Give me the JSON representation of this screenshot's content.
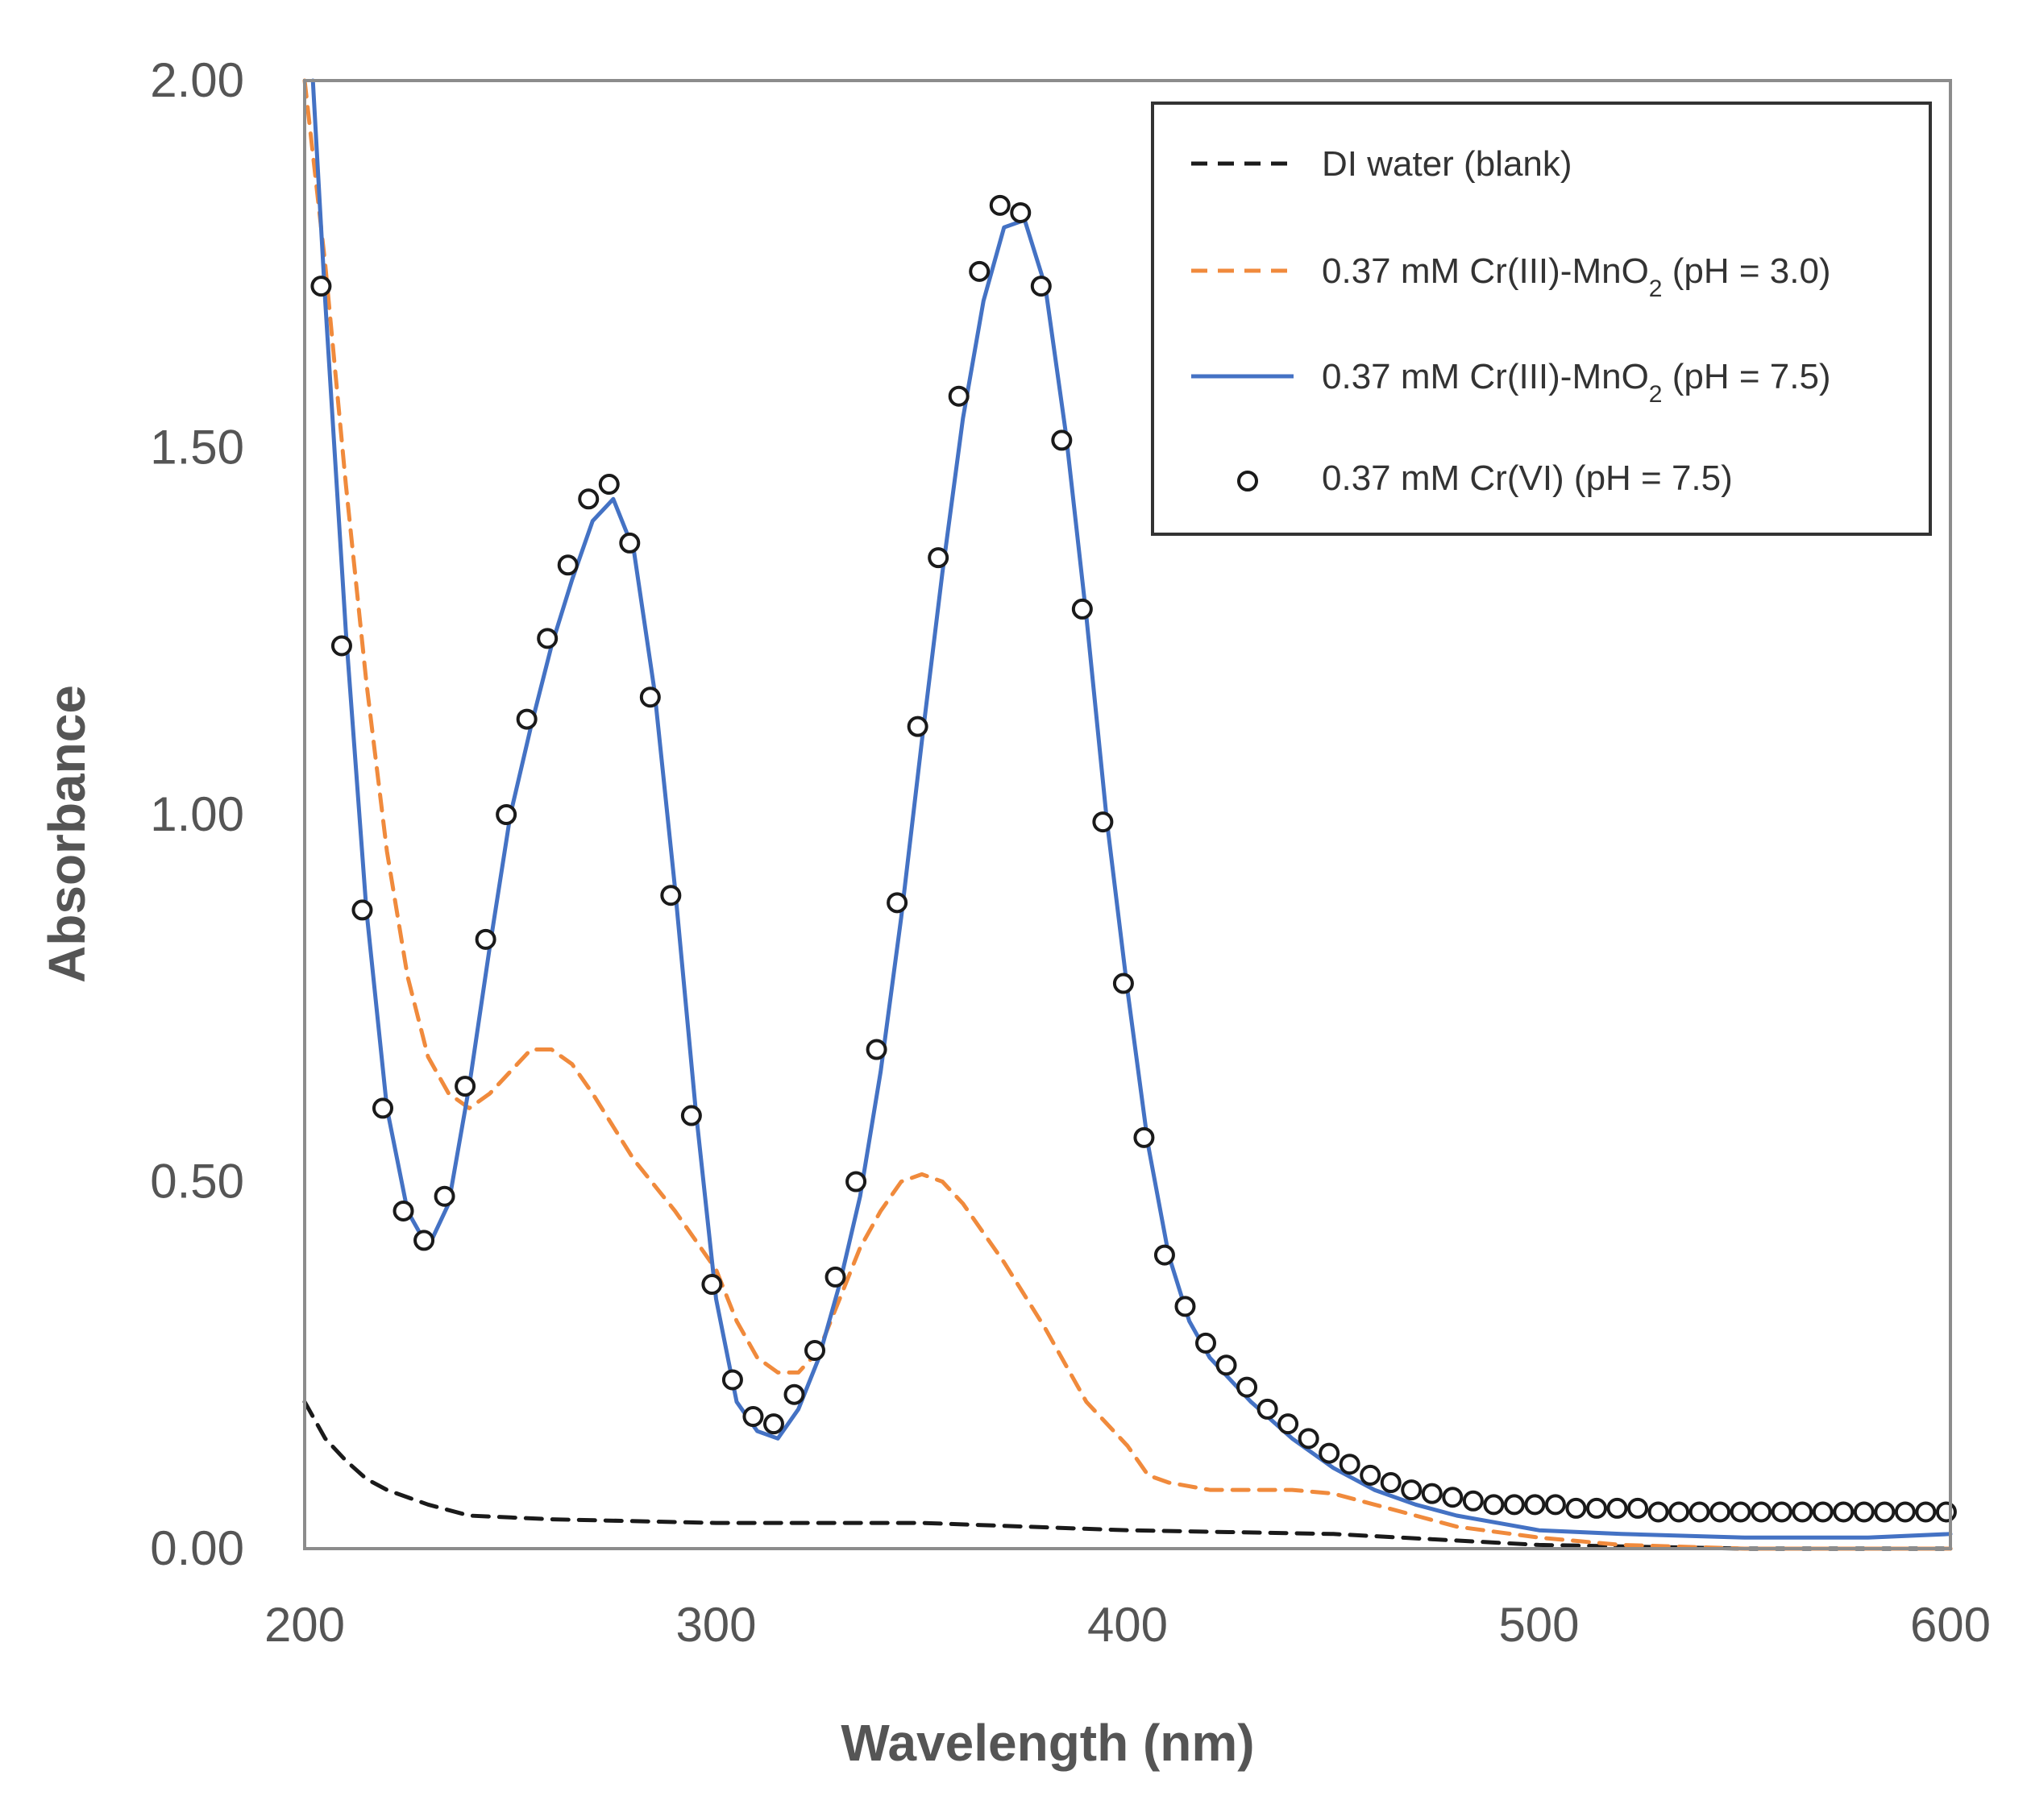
{
  "chart_data": {
    "type": "line",
    "xlabel": "Wavelength (nm)",
    "ylabel": "Absorbance",
    "xlim": [
      200,
      600
    ],
    "ylim": [
      0,
      2
    ],
    "x_ticks": [
      {
        "value": 200,
        "label": "200"
      },
      {
        "value": 300,
        "label": "300"
      },
      {
        "value": 400,
        "label": "400"
      },
      {
        "value": 500,
        "label": "500"
      },
      {
        "value": 600,
        "label": "600"
      }
    ],
    "y_ticks": [
      {
        "value": 0,
        "label": "0.00"
      },
      {
        "value": 0.5,
        "label": "0.50"
      },
      {
        "value": 1,
        "label": "1.00"
      },
      {
        "value": 1.5,
        "label": "1.50"
      },
      {
        "value": 2,
        "label": "2.00"
      }
    ],
    "legend": {
      "position": "top-right"
    },
    "series": [
      {
        "name": "DI water (blank)",
        "label_parts": [
          {
            "text": "DI water (blank)"
          }
        ],
        "style": "dashed",
        "color": "#1a1a1a",
        "x": [
          200,
          205,
          210,
          215,
          220,
          230,
          240,
          260,
          300,
          350,
          400,
          450,
          500,
          550,
          600
        ],
        "y": [
          0.2,
          0.15,
          0.12,
          0.095,
          0.08,
          0.06,
          0.045,
          0.04,
          0.035,
          0.035,
          0.025,
          0.02,
          0.005,
          0.0,
          0.0
        ]
      },
      {
        "name": "0.37 mM Cr(III)-MnO2 (pH = 3.0)",
        "label_parts": [
          {
            "text": "0.37 mM Cr(III)-MnO"
          },
          {
            "text": "2",
            "sub": true
          },
          {
            "text": " (pH = 3.0)"
          }
        ],
        "style": "dashed",
        "color": "#f08a3c",
        "x": [
          200,
          205,
          210,
          215,
          220,
          225,
          230,
          235,
          240,
          245,
          250,
          255,
          260,
          265,
          270,
          280,
          290,
          300,
          305,
          310,
          315,
          320,
          325,
          330,
          335,
          340,
          345,
          350,
          355,
          360,
          365,
          370,
          380,
          390,
          400,
          405,
          410,
          415,
          420,
          430,
          440,
          450,
          460,
          480,
          500,
          520,
          550,
          600
        ],
        "y": [
          2.0,
          1.75,
          1.45,
          1.18,
          0.95,
          0.78,
          0.67,
          0.62,
          0.6,
          0.62,
          0.65,
          0.68,
          0.68,
          0.66,
          0.62,
          0.53,
          0.46,
          0.38,
          0.31,
          0.26,
          0.24,
          0.24,
          0.27,
          0.34,
          0.41,
          0.46,
          0.5,
          0.51,
          0.5,
          0.47,
          0.43,
          0.39,
          0.3,
          0.2,
          0.14,
          0.1,
          0.09,
          0.085,
          0.08,
          0.08,
          0.08,
          0.075,
          0.06,
          0.03,
          0.015,
          0.005,
          0.0,
          0.0
        ]
      },
      {
        "name": "0.37 mM Cr(III)-MnO2 (pH = 7.5)",
        "label_parts": [
          {
            "text": "0.37 mM Cr(III)-MnO"
          },
          {
            "text": "2",
            "sub": true
          },
          {
            "text": " (pH = 7.5)"
          }
        ],
        "style": "solid",
        "color": "#4472c4",
        "x": [
          202,
          205,
          210,
          215,
          220,
          225,
          230,
          235,
          240,
          245,
          250,
          255,
          260,
          265,
          270,
          275,
          280,
          285,
          290,
          295,
          300,
          305,
          310,
          315,
          320,
          325,
          330,
          335,
          340,
          345,
          350,
          355,
          360,
          365,
          370,
          375,
          380,
          385,
          390,
          395,
          400,
          405,
          410,
          415,
          420,
          430,
          440,
          450,
          460,
          470,
          480,
          490,
          500,
          520,
          550,
          580,
          600
        ],
        "y": [
          2.0,
          1.7,
          1.25,
          0.87,
          0.6,
          0.46,
          0.41,
          0.47,
          0.63,
          0.82,
          1.0,
          1.12,
          1.23,
          1.32,
          1.4,
          1.43,
          1.36,
          1.17,
          0.9,
          0.6,
          0.34,
          0.2,
          0.16,
          0.15,
          0.19,
          0.26,
          0.36,
          0.48,
          0.65,
          0.86,
          1.1,
          1.33,
          1.54,
          1.7,
          1.8,
          1.81,
          1.72,
          1.52,
          1.27,
          0.99,
          0.76,
          0.55,
          0.4,
          0.31,
          0.26,
          0.2,
          0.15,
          0.11,
          0.08,
          0.06,
          0.045,
          0.035,
          0.025,
          0.02,
          0.015,
          0.015,
          0.02
        ]
      },
      {
        "name": "0.37 mM Cr(VI) (pH = 7.5)",
        "label_parts": [
          {
            "text": "0.37 mM Cr(VI) (pH = 7.5)"
          }
        ],
        "style": "markers",
        "color": "#1a1a1a",
        "x": [
          204,
          209,
          214,
          219,
          224,
          229,
          234,
          239,
          244,
          249,
          254,
          259,
          264,
          269,
          274,
          279,
          284,
          289,
          294,
          299,
          304,
          309,
          314,
          319,
          324,
          329,
          334,
          339,
          344,
          349,
          354,
          359,
          364,
          369,
          374,
          379,
          384,
          389,
          394,
          399,
          404,
          409,
          414,
          419,
          424,
          429,
          434,
          439,
          444,
          449,
          454,
          459,
          464,
          469,
          474,
          479,
          484,
          489,
          494,
          499,
          504,
          509,
          514,
          519,
          524,
          529,
          534,
          539,
          544,
          549,
          554,
          559,
          564,
          569,
          574,
          579,
          584,
          589,
          594,
          599
        ],
        "y": [
          1.72,
          1.23,
          0.87,
          0.6,
          0.46,
          0.42,
          0.48,
          0.63,
          0.83,
          1.0,
          1.13,
          1.24,
          1.34,
          1.43,
          1.45,
          1.37,
          1.16,
          0.89,
          0.59,
          0.36,
          0.23,
          0.18,
          0.17,
          0.21,
          0.27,
          0.37,
          0.5,
          0.68,
          0.88,
          1.12,
          1.35,
          1.57,
          1.74,
          1.83,
          1.82,
          1.72,
          1.51,
          1.28,
          0.99,
          0.77,
          0.56,
          0.4,
          0.33,
          0.28,
          0.25,
          0.22,
          0.19,
          0.17,
          0.15,
          0.13,
          0.115,
          0.1,
          0.09,
          0.08,
          0.075,
          0.07,
          0.065,
          0.06,
          0.06,
          0.06,
          0.06,
          0.055,
          0.055,
          0.055,
          0.055,
          0.05,
          0.05,
          0.05,
          0.05,
          0.05,
          0.05,
          0.05,
          0.05,
          0.05,
          0.05,
          0.05,
          0.05,
          0.05,
          0.05,
          0.05
        ]
      }
    ]
  }
}
